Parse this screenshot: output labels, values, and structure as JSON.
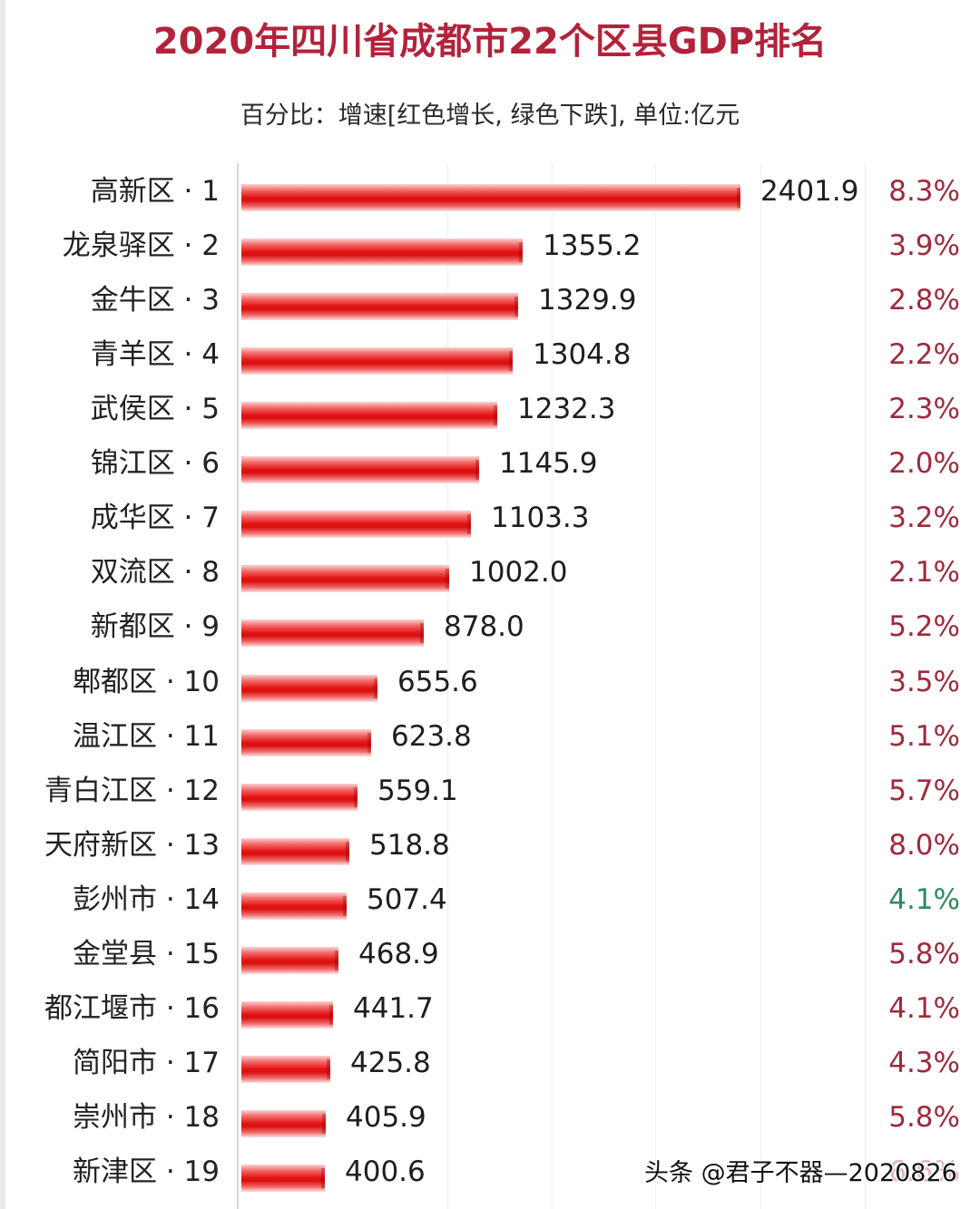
{
  "chart_data": {
    "type": "bar",
    "orientation": "horizontal",
    "title": "2020年四川省成都市22个区县GDP排名",
    "subtitle": "百分比：增速[红色增长, 绿色下跌], 单位:亿元",
    "xlabel": "",
    "ylabel": "",
    "unit": "亿元",
    "grid": true,
    "legend": null,
    "categories": [
      "高新区 · 1",
      "龙泉驿区 · 2",
      "金牛区 · 3",
      "青羊区 · 4",
      "武侯区 · 5",
      "锦江区 · 6",
      "成华区 · 7",
      "双流区 · 8",
      "新都区 · 9",
      "郫都区 · 10",
      "温江区 · 11",
      "青白江区 · 12",
      "天府新区 · 13",
      "彭州市 · 14",
      "金堂县 · 15",
      "都江堰市 · 16",
      "简阳市 · 17",
      "崇州市 · 18",
      "新津区 · 19"
    ],
    "series": [
      {
        "name": "GDP (亿元)",
        "values": [
          2401.9,
          1355.2,
          1329.9,
          1304.8,
          1232.3,
          1145.9,
          1103.3,
          1002.0,
          878.0,
          655.6,
          623.8,
          559.1,
          518.8,
          507.4,
          468.9,
          441.7,
          425.8,
          405.9,
          400.6
        ]
      },
      {
        "name": "增速",
        "values": [
          "8.3%",
          "3.9%",
          "2.8%",
          "2.2%",
          "2.3%",
          "2.0%",
          "3.2%",
          "2.1%",
          "5.2%",
          "3.5%",
          "5.1%",
          "5.7%",
          "8.0%",
          "4.1%",
          "5.8%",
          "4.1%",
          "4.3%",
          "5.8%",
          "obscured"
        ]
      }
    ]
  },
  "title": "2020年四川省成都市22个区县GDP排名",
  "subtitle": "百分比：增速[红色增长, 绿色下跌], 单位:亿元",
  "colors": {
    "title": "#b2233b",
    "bar": "#e31414",
    "growth_red": "#9e2a3c",
    "decline_green": "#2e8a5e"
  },
  "rows": [
    {
      "label": "高新区 · 1",
      "value": "2401.9",
      "num": 2401.9,
      "pct": "8.3%",
      "trend": "up"
    },
    {
      "label": "龙泉驿区 · 2",
      "value": "1355.2",
      "num": 1355.2,
      "pct": "3.9%",
      "trend": "up"
    },
    {
      "label": "金牛区 · 3",
      "value": "1329.9",
      "num": 1329.9,
      "pct": "2.8%",
      "trend": "up"
    },
    {
      "label": "青羊区 · 4",
      "value": "1304.8",
      "num": 1304.8,
      "pct": "2.2%",
      "trend": "up"
    },
    {
      "label": "武侯区 · 5",
      "value": "1232.3",
      "num": 1232.3,
      "pct": "2.3%",
      "trend": "up"
    },
    {
      "label": "锦江区 · 6",
      "value": "1145.9",
      "num": 1145.9,
      "pct": "2.0%",
      "trend": "up"
    },
    {
      "label": "成华区 · 7",
      "value": "1103.3",
      "num": 1103.3,
      "pct": "3.2%",
      "trend": "up"
    },
    {
      "label": "双流区 · 8",
      "value": "1002.0",
      "num": 1002.0,
      "pct": "2.1%",
      "trend": "up"
    },
    {
      "label": "新都区 · 9",
      "value": "878.0",
      "num": 878.0,
      "pct": "5.2%",
      "trend": "up"
    },
    {
      "label": "郫都区 · 10",
      "value": "655.6",
      "num": 655.6,
      "pct": "3.5%",
      "trend": "up"
    },
    {
      "label": "温江区 · 11",
      "value": "623.8",
      "num": 623.8,
      "pct": "5.1%",
      "trend": "up"
    },
    {
      "label": "青白江区 · 12",
      "value": "559.1",
      "num": 559.1,
      "pct": "5.7%",
      "trend": "up"
    },
    {
      "label": "天府新区 · 13",
      "value": "518.8",
      "num": 518.8,
      "pct": "8.0%",
      "trend": "up"
    },
    {
      "label": "彭州市 · 14",
      "value": "507.4",
      "num": 507.4,
      "pct": "4.1%",
      "trend": "down"
    },
    {
      "label": "金堂县 · 15",
      "value": "468.9",
      "num": 468.9,
      "pct": "5.8%",
      "trend": "up"
    },
    {
      "label": "都江堰市 · 16",
      "value": "441.7",
      "num": 441.7,
      "pct": "4.1%",
      "trend": "up"
    },
    {
      "label": "简阳市 · 17",
      "value": "425.8",
      "num": 425.8,
      "pct": "4.3%",
      "trend": "up"
    },
    {
      "label": "崇州市 · 18",
      "value": "405.9",
      "num": 405.9,
      "pct": "5.8%",
      "trend": "up"
    },
    {
      "label": "新津区 · 19",
      "value": "400.6",
      "num": 400.6,
      "pct": "6.6%",
      "trend": "obscured"
    }
  ],
  "watermark": "头条 @君子不器—2020826"
}
